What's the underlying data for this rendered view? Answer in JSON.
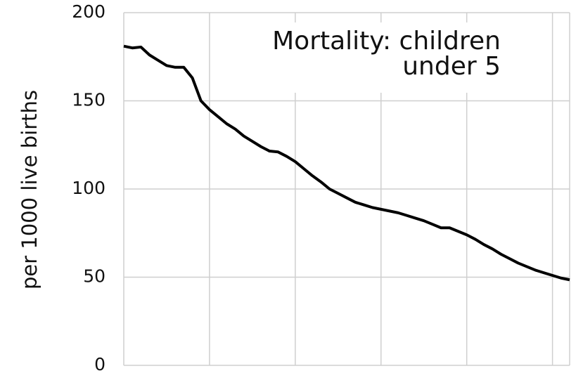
{
  "chart_data": {
    "type": "line",
    "title": [
      "Mortality: children",
      "under 5"
    ],
    "y_label": "per 1000 live births",
    "x": [
      0,
      1,
      2,
      3,
      4,
      5,
      6,
      7,
      8,
      9,
      10,
      11,
      12,
      13,
      14,
      15,
      16,
      17,
      18,
      19,
      20,
      21,
      22,
      23,
      24,
      25,
      26,
      27,
      28,
      29,
      30,
      31,
      32,
      33,
      34,
      35,
      36,
      37,
      38,
      39,
      40,
      41,
      42,
      43,
      44,
      45,
      46,
      47,
      48,
      49,
      50,
      51,
      52
    ],
    "series": [
      {
        "color": "#000000",
        "values": [
          181,
          180,
          180.5,
          176,
          173,
          170,
          169,
          169,
          163,
          150,
          145,
          141,
          137,
          134,
          130,
          127,
          124,
          121.5,
          121,
          118.5,
          115.5,
          111.5,
          107.5,
          104,
          100,
          97.5,
          95,
          92.5,
          91,
          89.5,
          88.5,
          87.5,
          86.5,
          85,
          83.5,
          82,
          80,
          78,
          78,
          76,
          74,
          71.5,
          68.5,
          66,
          63,
          60.5,
          58,
          56,
          54,
          52.5,
          51,
          49.5,
          48.5
        ]
      }
    ],
    "xlim": [
      0,
      52
    ],
    "xticks": [
      0,
      10,
      20,
      30,
      40,
      50,
      52
    ],
    "ylim": [
      0,
      200
    ],
    "yticks": [
      0,
      50,
      100,
      150,
      200
    ],
    "grid": true
  }
}
